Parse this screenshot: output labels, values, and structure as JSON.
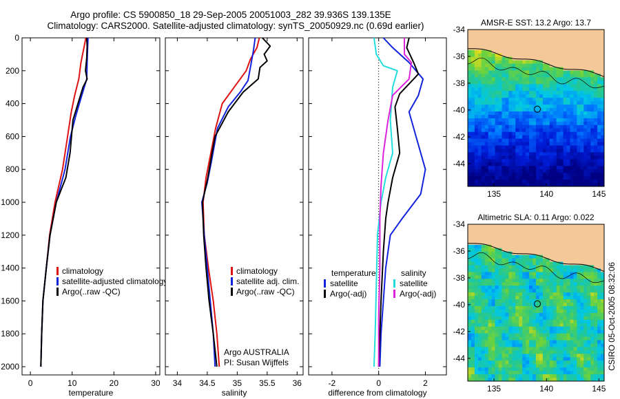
{
  "title_line1": "Argo profile: CS 5900850_18 29-Sep-2005 20051003_282 39.936S 139.135E",
  "title_line2": "Climatology: CARS2000. Satellite-adjusted climatology: synTS_20050929.nc (0.69d earlier)",
  "side_label": "CSIRO 05-Oct-2005 08:32:06",
  "colors": {
    "red": "#dd1111",
    "blue": "#1122dd",
    "black": "#000000",
    "cyan": "#22dddd",
    "magenta": "#dd22dd",
    "land": "#f5c89a"
  },
  "chart_data": [
    {
      "type": "line",
      "xlabel": "temperature",
      "xlim": [
        -2,
        31
      ],
      "ylim": [
        0,
        2050
      ],
      "y_reversed": true,
      "xticks": [
        0,
        10,
        20,
        30
      ],
      "yticks": [
        0,
        200,
        400,
        600,
        800,
        1000,
        1200,
        1400,
        1600,
        1800,
        2000
      ],
      "legend": [
        "climatology",
        "satellite-adjusted climatology",
        "Argo(..raw -QC)"
      ],
      "series": [
        {
          "name": "climatology",
          "color": "red",
          "points": [
            [
              13.3,
              0
            ],
            [
              12.9,
              50
            ],
            [
              12.1,
              150
            ],
            [
              11.6,
              250
            ],
            [
              10.6,
              350
            ],
            [
              9.8,
              450
            ],
            [
              8.9,
              600
            ],
            [
              7.7,
              800
            ],
            [
              5.9,
              1000
            ],
            [
              4.6,
              1200
            ],
            [
              3.8,
              1400
            ],
            [
              3.0,
              1600
            ],
            [
              2.7,
              1800
            ],
            [
              2.5,
              2000
            ]
          ]
        },
        {
          "name": "satellite-adjusted climatology",
          "color": "blue",
          "points": [
            [
              13.8,
              0
            ],
            [
              13.7,
              60
            ],
            [
              13.6,
              150
            ],
            [
              13.5,
              250
            ],
            [
              12.3,
              350
            ],
            [
              10.8,
              480
            ],
            [
              9.6,
              600
            ],
            [
              8.3,
              800
            ],
            [
              6.2,
              1000
            ],
            [
              4.7,
              1200
            ],
            [
              3.8,
              1400
            ],
            [
              3.0,
              1600
            ],
            [
              2.7,
              1800
            ],
            [
              2.5,
              2000
            ]
          ]
        },
        {
          "name": "Argo(..raw -QC)",
          "color": "black",
          "points": [
            [
              13.5,
              0
            ],
            [
              13.6,
              50
            ],
            [
              13.5,
              120
            ],
            [
              13.2,
              200
            ],
            [
              13.6,
              250
            ],
            [
              12.6,
              300
            ],
            [
              11.4,
              400
            ],
            [
              10.2,
              500
            ],
            [
              9.5,
              700
            ],
            [
              8.5,
              850
            ],
            [
              6.2,
              1000
            ],
            [
              4.7,
              1200
            ],
            [
              3.8,
              1400
            ],
            [
              3.0,
              1600
            ],
            [
              2.7,
              1800
            ],
            [
              2.5,
              2000
            ]
          ]
        }
      ]
    },
    {
      "type": "line",
      "xlabel": "salinity",
      "xlim": [
        33.8,
        36.1
      ],
      "ylim": [
        0,
        2050
      ],
      "y_reversed": true,
      "xticks": [
        34,
        34.5,
        35,
        35.5,
        36
      ],
      "xtick_labels": [
        "34",
        "34.5",
        "35",
        "35.5",
        "36"
      ],
      "legend": [
        "climatology",
        "satellite adj. clim.",
        "Argo(..raw -QC)"
      ],
      "annotation": [
        "Argo AUSTRALIA",
        "PI: Susan Wijffels"
      ],
      "series": [
        {
          "name": "climatology",
          "color": "red",
          "points": [
            [
              35.37,
              0
            ],
            [
              35.33,
              60
            ],
            [
              35.22,
              130
            ],
            [
              35.15,
              200
            ],
            [
              34.95,
              300
            ],
            [
              34.75,
              400
            ],
            [
              34.64,
              550
            ],
            [
              34.56,
              700
            ],
            [
              34.48,
              850
            ],
            [
              34.43,
              1000
            ],
            [
              34.45,
              1200
            ],
            [
              34.52,
              1400
            ],
            [
              34.6,
              1600
            ],
            [
              34.66,
              1800
            ],
            [
              34.7,
              2000
            ]
          ]
        },
        {
          "name": "satellite adj. clim.",
          "color": "blue",
          "points": [
            [
              35.3,
              0
            ],
            [
              35.27,
              80
            ],
            [
              35.22,
              180
            ],
            [
              35.18,
              260
            ],
            [
              35.05,
              330
            ],
            [
              34.85,
              420
            ],
            [
              34.67,
              550
            ],
            [
              34.57,
              750
            ],
            [
              34.5,
              880
            ],
            [
              34.41,
              1000
            ],
            [
              34.45,
              1200
            ],
            [
              34.5,
              1400
            ],
            [
              34.55,
              1600
            ],
            [
              34.6,
              1800
            ],
            [
              34.63,
              2000
            ]
          ]
        },
        {
          "name": "Argo(..raw -QC)",
          "color": "black",
          "points": [
            [
              35.42,
              0
            ],
            [
              35.55,
              50
            ],
            [
              35.45,
              100
            ],
            [
              35.5,
              140
            ],
            [
              35.38,
              180
            ],
            [
              35.35,
              250
            ],
            [
              35.1,
              330
            ],
            [
              34.85,
              450
            ],
            [
              34.63,
              600
            ],
            [
              34.58,
              700
            ],
            [
              34.51,
              850
            ],
            [
              34.42,
              1000
            ],
            [
              34.44,
              1200
            ],
            [
              34.48,
              1400
            ],
            [
              34.53,
              1600
            ],
            [
              34.6,
              1800
            ],
            [
              34.66,
              2000
            ]
          ]
        }
      ]
    },
    {
      "type": "line",
      "xlabel": "difference from climatology",
      "xlim": [
        -3.0,
        2.9
      ],
      "ylim": [
        0,
        2050
      ],
      "y_reversed": true,
      "xticks": [
        -2,
        0,
        2
      ],
      "zero_line": true,
      "legend_titles": [
        "temperature",
        "salinity"
      ],
      "legend": [
        "satellite",
        "Argo(-adj)",
        "satellite",
        "Argo(-adj)"
      ],
      "series": [
        {
          "name": "satellite",
          "group": "temperature",
          "color": "blue",
          "points": [
            [
              0.2,
              0
            ],
            [
              0.6,
              60
            ],
            [
              1.3,
              150
            ],
            [
              1.9,
              250
            ],
            [
              1.7,
              350
            ],
            [
              1.3,
              450
            ],
            [
              1.6,
              600
            ],
            [
              2.0,
              800
            ],
            [
              1.8,
              950
            ],
            [
              1.0,
              1100
            ],
            [
              0.5,
              1200
            ],
            [
              0.3,
              1400
            ],
            [
              0.2,
              1600
            ],
            [
              0.1,
              1800
            ],
            [
              0.05,
              2000
            ]
          ]
        },
        {
          "name": "Argo(-adj)",
          "group": "temperature",
          "color": "black",
          "points": [
            [
              1.3,
              0
            ],
            [
              1.2,
              60
            ],
            [
              1.5,
              150
            ],
            [
              1.7,
              220
            ],
            [
              1.3,
              280
            ],
            [
              0.9,
              340
            ],
            [
              0.7,
              420
            ],
            [
              0.8,
              550
            ],
            [
              0.9,
              700
            ],
            [
              0.6,
              850
            ],
            [
              0.4,
              1000
            ],
            [
              0.3,
              1100
            ],
            [
              0.2,
              1300
            ],
            [
              0.1,
              1600
            ],
            [
              0.05,
              1800
            ],
            [
              0.0,
              2000
            ]
          ]
        },
        {
          "name": "satellite",
          "group": "salinity",
          "color": "cyan",
          "points": [
            [
              -0.2,
              0
            ],
            [
              -0.1,
              100
            ],
            [
              0.2,
              170
            ],
            [
              0.8,
              200
            ],
            [
              0.6,
              300
            ],
            [
              0.5,
              500
            ],
            [
              0.6,
              700
            ],
            [
              0.3,
              850
            ],
            [
              0.1,
              1000
            ],
            [
              -0.05,
              1200
            ],
            [
              -0.1,
              1500
            ],
            [
              -0.15,
              1800
            ],
            [
              -0.2,
              2000
            ]
          ]
        },
        {
          "name": "Argo(-adj)",
          "group": "salinity",
          "color": "magenta",
          "points": [
            [
              1.1,
              0
            ],
            [
              1.1,
              100
            ],
            [
              1.4,
              150
            ],
            [
              1.3,
              250
            ],
            [
              0.6,
              350
            ],
            [
              0.4,
              500
            ],
            [
              0.2,
              700
            ],
            [
              0.1,
              900
            ],
            [
              0.05,
              1100
            ],
            [
              0.05,
              1400
            ],
            [
              0.0,
              1700
            ],
            [
              0.0,
              2000
            ]
          ]
        }
      ]
    },
    {
      "type": "heatmap",
      "title": "AMSR-E SST: 13.2 Argo: 13.7",
      "xlim": [
        132.5,
        145.5
      ],
      "ylim": [
        -45.7,
        -34
      ],
      "xticks": [
        135,
        140,
        145
      ],
      "yticks": [
        -34,
        -36,
        -38,
        -40,
        -42,
        -44
      ],
      "marker": [
        139.135,
        -39.936
      ]
    },
    {
      "type": "heatmap",
      "title": "Altimetric SLA: 0.11 Argo: 0.022",
      "xlim": [
        132.5,
        145.5
      ],
      "ylim": [
        -45.7,
        -34
      ],
      "xticks": [
        135,
        140,
        145
      ],
      "yticks": [
        -34,
        -36,
        -38,
        -40,
        -42,
        -44
      ],
      "marker": [
        139.135,
        -39.936
      ]
    }
  ]
}
